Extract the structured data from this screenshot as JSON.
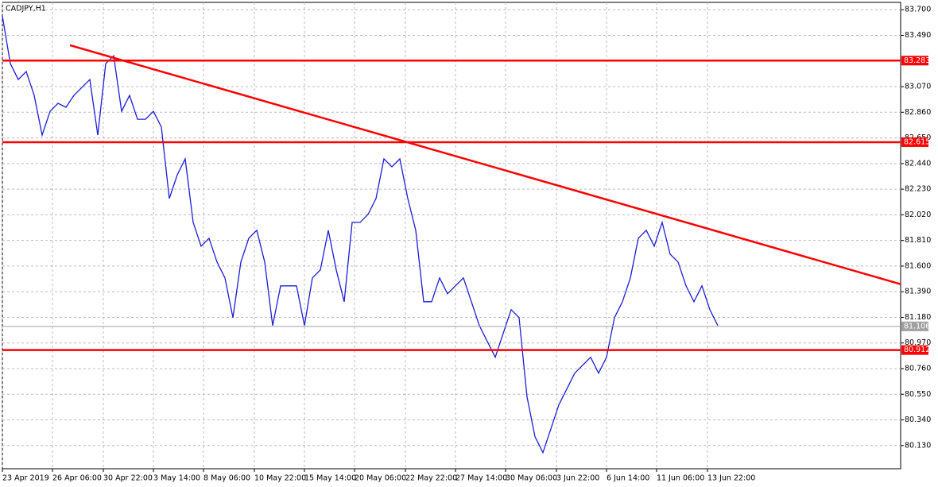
{
  "chart_data": {
    "type": "line",
    "title": "CADJPY,H1",
    "xlim": [
      0,
      1130
    ],
    "ylim": [
      79.94,
      83.76
    ],
    "xticks": [
      {
        "value": 0,
        "label": "23 Apr 2019"
      },
      {
        "value": 63,
        "label": "26 Apr 06:00"
      },
      {
        "value": 127,
        "label": "30 Apr 22:00"
      },
      {
        "value": 190,
        "label": "3 May 14:00"
      },
      {
        "value": 253,
        "label": "8 May 06:00"
      },
      {
        "value": 317,
        "label": "10 May 22:00"
      },
      {
        "value": 380,
        "label": "15 May 14:00"
      },
      {
        "value": 443,
        "label": "20 May 06:00"
      },
      {
        "value": 507,
        "label": "22 May 22:00"
      },
      {
        "value": 570,
        "label": "27 May 14:00"
      },
      {
        "value": 633,
        "label": "30 May 06:00"
      },
      {
        "value": 697,
        "label": "3 Jun 22:00"
      },
      {
        "value": 760,
        "label": "6 Jun 14:00"
      },
      {
        "value": 823,
        "label": "11 Jun 06:00"
      },
      {
        "value": 887,
        "label": "13 Jun 22:00"
      }
    ],
    "yticks": [
      {
        "value": 83.7,
        "label": "83.700"
      },
      {
        "value": 83.49,
        "label": "83.490"
      },
      {
        "value": 83.07,
        "label": "83.070"
      },
      {
        "value": 82.86,
        "label": "82.860"
      },
      {
        "value": 82.65,
        "label": "82.650"
      },
      {
        "value": 82.44,
        "label": "82.440"
      },
      {
        "value": 82.23,
        "label": "82.230"
      },
      {
        "value": 82.02,
        "label": "82.020"
      },
      {
        "value": 81.81,
        "label": "81.810"
      },
      {
        "value": 81.6,
        "label": "81.600"
      },
      {
        "value": 81.39,
        "label": "81.390"
      },
      {
        "value": 81.18,
        "label": "81.180"
      },
      {
        "value": 80.97,
        "label": "80.970"
      },
      {
        "value": 80.76,
        "label": "80.760"
      },
      {
        "value": 80.55,
        "label": "80.550"
      },
      {
        "value": 80.34,
        "label": "80.340"
      },
      {
        "value": 80.13,
        "label": "80.130"
      }
    ],
    "grid": true,
    "series": [
      {
        "color": "#1c1cd8",
        "x": [
          0,
          10,
          20,
          30,
          40,
          50,
          60,
          70,
          80,
          90,
          100,
          110,
          120,
          130,
          140,
          150,
          160,
          170,
          180,
          190,
          200,
          210,
          220,
          230,
          240,
          250,
          260,
          270,
          280,
          290,
          300,
          310,
          320,
          330,
          340,
          350,
          360,
          370,
          380,
          390,
          400,
          410,
          420,
          430,
          440,
          450,
          460,
          470,
          480,
          490,
          500,
          510,
          520,
          530,
          540,
          550,
          560,
          570,
          580,
          590,
          600,
          610,
          620,
          630,
          640,
          650,
          660,
          670,
          680,
          690,
          700,
          710,
          720,
          730,
          740,
          750,
          760,
          770,
          780,
          790,
          800,
          810,
          820,
          830,
          840,
          850,
          860,
          870,
          880,
          890,
          900
        ],
        "values": [
          83.648,
          83.258,
          83.128,
          83.193,
          82.998,
          82.673,
          82.868,
          82.933,
          82.901,
          82.998,
          83.063,
          83.128,
          82.673,
          83.258,
          83.323,
          82.868,
          82.998,
          82.803,
          82.803,
          82.868,
          82.738,
          82.153,
          82.348,
          82.478,
          81.958,
          81.763,
          81.828,
          81.633,
          81.503,
          81.178,
          81.633,
          81.828,
          81.893,
          81.633,
          81.113,
          81.438,
          81.438,
          81.438,
          81.113,
          81.503,
          81.568,
          81.893,
          81.568,
          81.308,
          81.958,
          81.958,
          82.023,
          82.153,
          82.478,
          82.413,
          82.478,
          82.153,
          81.893,
          81.308,
          81.308,
          81.503,
          81.373,
          81.438,
          81.503,
          81.308,
          81.113,
          80.983,
          80.853,
          81.048,
          81.243,
          81.178,
          80.528,
          80.202,
          80.072,
          80.267,
          80.463,
          80.593,
          80.723,
          80.788,
          80.853,
          80.723,
          80.853,
          81.178,
          81.308,
          81.503,
          81.828,
          81.893,
          81.763,
          81.958,
          81.698,
          81.633,
          81.438,
          81.308,
          81.438,
          81.243,
          81.113
        ]
      }
    ],
    "levels": [
      {
        "value": 83.283,
        "label": "83.283",
        "color": "#ff0000"
      },
      {
        "value": 82.615,
        "label": "82.615",
        "color": "#ff0000"
      },
      {
        "value": 80.912,
        "label": "80.912",
        "color": "#ff0000"
      }
    ],
    "current_price": {
      "value": 81.106,
      "label": "81.106",
      "color": "#a0a0a0"
    },
    "trendline": {
      "x": [
        85,
        1130
      ],
      "y": [
        83.409,
        81.452
      ],
      "color": "#ff0000"
    }
  }
}
